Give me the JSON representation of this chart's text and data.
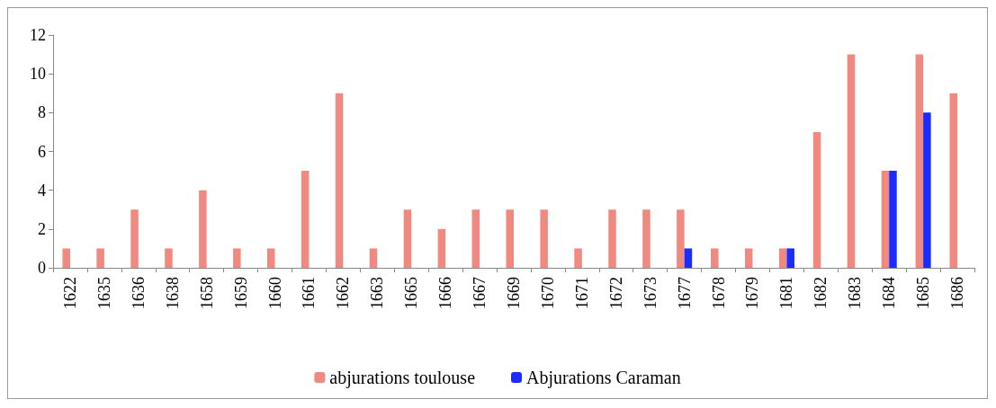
{
  "chart_data": {
    "type": "bar",
    "categories": [
      "1622",
      "1635",
      "1636",
      "1638",
      "1658",
      "1659",
      "1660",
      "1661",
      "1662",
      "1663",
      "1665",
      "1666",
      "1667",
      "1669",
      "1670",
      "1671",
      "1672",
      "1673",
      "1677",
      "1678",
      "1679",
      "1681",
      "1682",
      "1683",
      "1684",
      "1685",
      "1686"
    ],
    "series": [
      {
        "name": "abjurations toulouse",
        "color": "#f08a80",
        "values": [
          1,
          1,
          3,
          1,
          4,
          1,
          1,
          5,
          9,
          1,
          3,
          2,
          3,
          3,
          3,
          1,
          3,
          3,
          3,
          1,
          1,
          1,
          7,
          11,
          5,
          11,
          9
        ]
      },
      {
        "name": "Abjurations Caraman",
        "color": "#1a2cff",
        "values": [
          null,
          null,
          null,
          null,
          null,
          null,
          null,
          null,
          null,
          null,
          null,
          null,
          null,
          null,
          null,
          null,
          null,
          null,
          1,
          null,
          null,
          1,
          null,
          null,
          5,
          8,
          null
        ]
      }
    ],
    "ylim": [
      0,
      12
    ],
    "yticks": [
      0,
      2,
      4,
      6,
      8,
      10,
      12
    ],
    "grid": false,
    "legend": "bottom"
  }
}
